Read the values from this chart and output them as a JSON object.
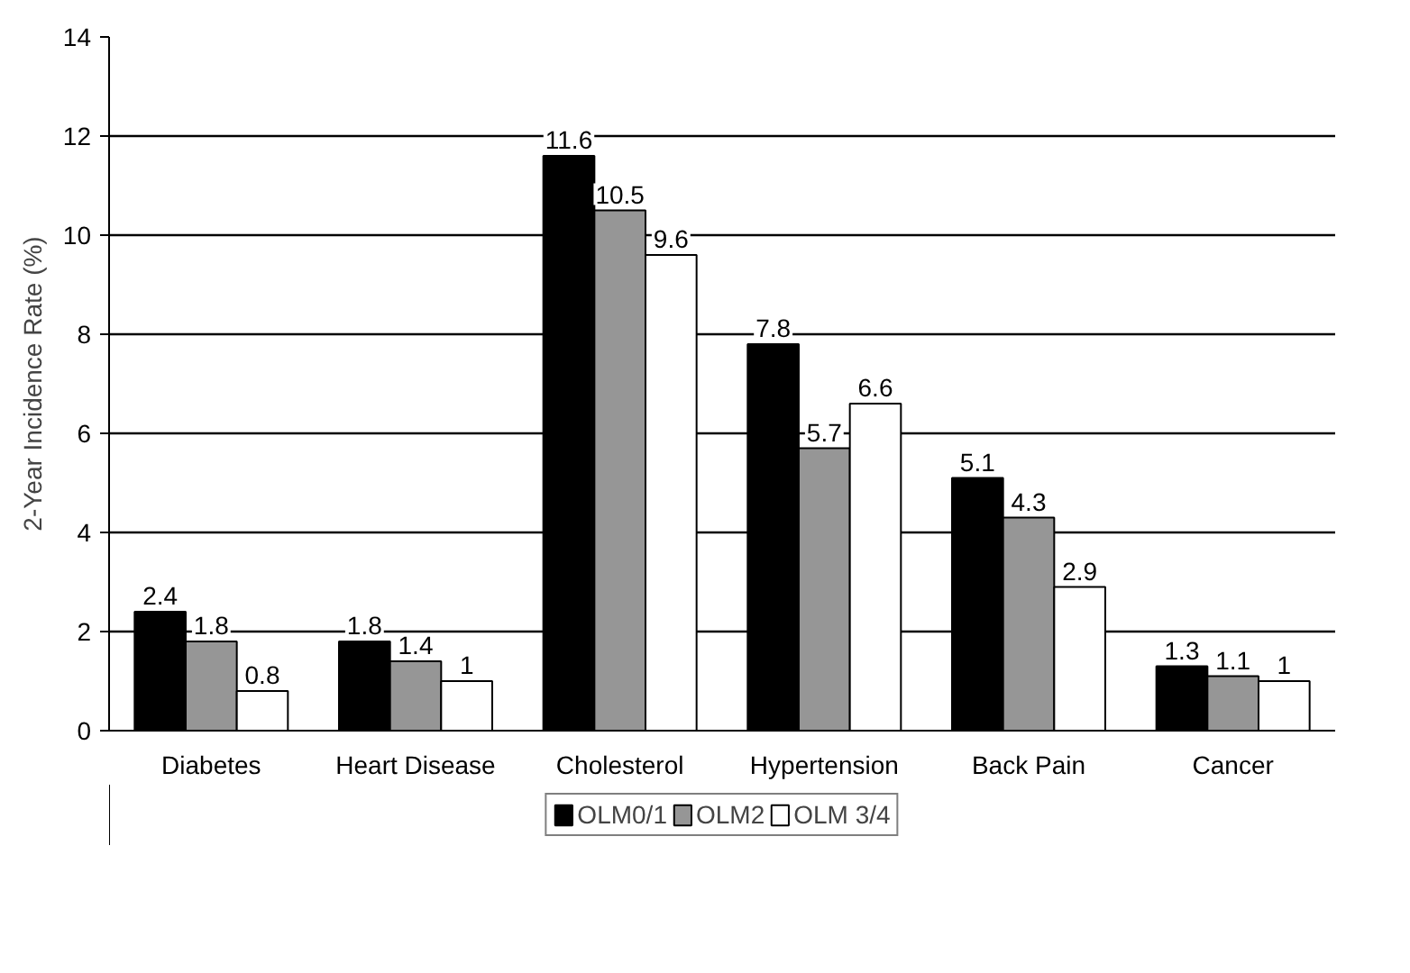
{
  "chart_data": {
    "type": "bar",
    "ylabel": "2-Year Incidence Rate (%)",
    "categories": [
      "Diabetes",
      "Heart Disease",
      "Cholesterol",
      "Hypertension",
      "Back Pain",
      "Cancer"
    ],
    "series": [
      {
        "name": "OLM0/1",
        "color": "#000000",
        "values": [
          2.4,
          1.8,
          11.6,
          7.8,
          5.1,
          1.3
        ]
      },
      {
        "name": "OLM2",
        "color": "#969696",
        "values": [
          1.8,
          1.4,
          10.5,
          5.7,
          4.3,
          1.1
        ]
      },
      {
        "name": "OLM 3/4",
        "color": "#ffffff",
        "values": [
          0.8,
          1,
          9.6,
          6.6,
          2.9,
          1
        ]
      }
    ],
    "ylim": [
      0,
      14
    ],
    "yticks": [
      0,
      2,
      4,
      6,
      8,
      10,
      12,
      14
    ],
    "grid": "y",
    "legend": "bottom",
    "data_labels": true
  }
}
